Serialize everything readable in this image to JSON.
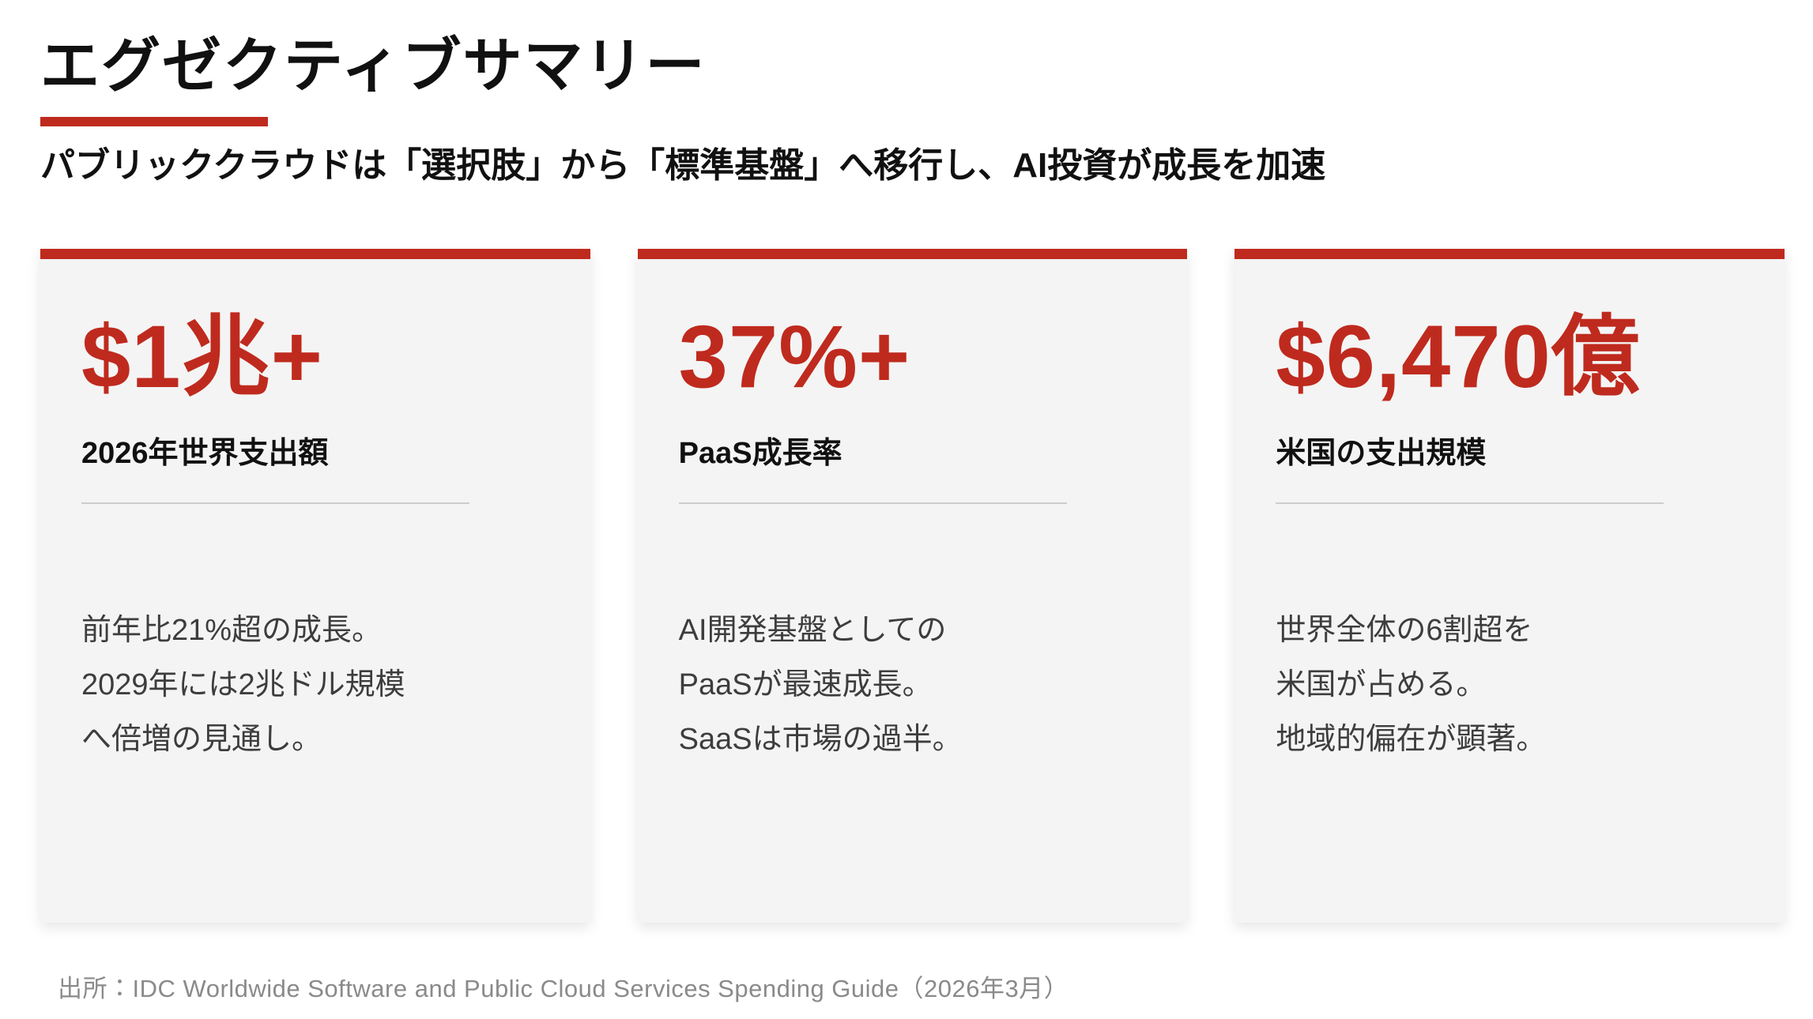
{
  "header": {
    "title": "エグゼクティブサマリー",
    "subtitle": "パブリッククラウドは「選択肢」から「標準基盤」へ移行し、AI投資が成長を加速"
  },
  "cards": [
    {
      "value": "$1兆+",
      "label": "2026年世界支出額",
      "desc": [
        "前年比21%超の成長。",
        "2029年には2兆ドル規模",
        "へ倍増の見通し。"
      ]
    },
    {
      "value": "37%+",
      "label": "PaaS成長率",
      "desc": [
        "AI開発基盤としての",
        "PaaSが最速成長。",
        "SaaSは市場の過半。"
      ]
    },
    {
      "value": "$6,470億",
      "label": "米国の支出規模",
      "desc": [
        "世界全体の6割超を",
        "米国が占める。",
        "地域的偏在が顕著。"
      ]
    }
  ],
  "footer": {
    "source": "出所：IDC Worldwide Software and Public Cloud Services Spending Guide（2026年3月）"
  },
  "colors": {
    "accent": "#bf2a1e",
    "card_background": "#f4f4f4",
    "heading_text": "#111111",
    "body_text": "#3d3d3d",
    "muted_text": "#8a8a8a",
    "divider": "#cccccc"
  }
}
